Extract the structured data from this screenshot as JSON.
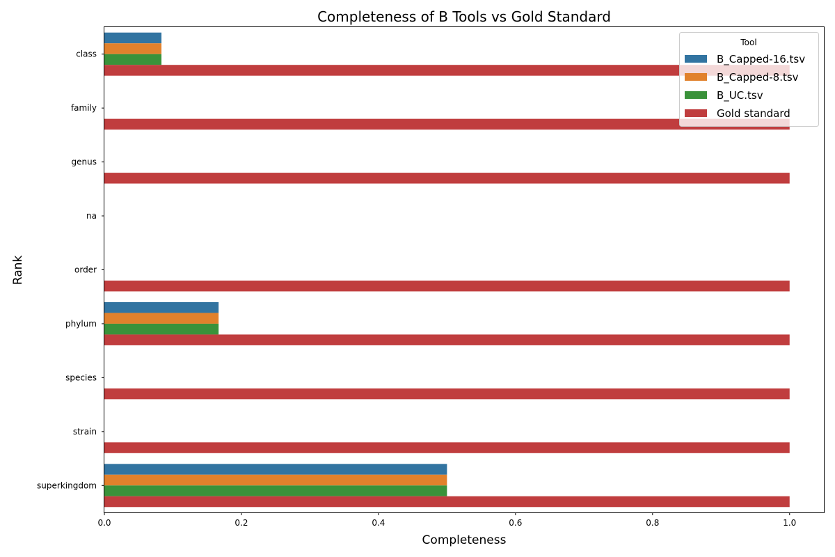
{
  "chart_data": {
    "type": "bar",
    "orientation": "horizontal",
    "title": "Completeness of B Tools vs Gold Standard",
    "xlabel": "Completeness",
    "ylabel": "Rank",
    "xlim": [
      0,
      1.05
    ],
    "xticks": [
      0.0,
      0.2,
      0.4,
      0.6,
      0.8,
      1.0
    ],
    "xtick_labels": [
      "0.0",
      "0.2",
      "0.4",
      "0.6",
      "0.8",
      "1.0"
    ],
    "grid": false,
    "categories": [
      "class",
      "family",
      "genus",
      "na",
      "order",
      "phylum",
      "species",
      "strain",
      "superkingdom"
    ],
    "legend": {
      "title": "Tool",
      "position": "top-right"
    },
    "series": [
      {
        "name": "B_Capped-16.tsv",
        "color": "#3274a1",
        "values": [
          0.0833,
          0,
          0,
          0,
          0,
          0.1667,
          0,
          0,
          0.5
        ]
      },
      {
        "name": "B_Capped-8.tsv",
        "color": "#e1812c",
        "values": [
          0.0833,
          0,
          0,
          0,
          0,
          0.1667,
          0,
          0,
          0.5
        ]
      },
      {
        "name": "B_UC.tsv",
        "color": "#3a923a",
        "values": [
          0.0833,
          0,
          0,
          0,
          0,
          0.1667,
          0,
          0,
          0.5
        ]
      },
      {
        "name": "Gold standard",
        "color": "#c03d3e",
        "values": [
          1.0,
          1.0,
          1.0,
          0,
          1.0,
          1.0,
          1.0,
          1.0,
          1.0
        ]
      }
    ]
  }
}
